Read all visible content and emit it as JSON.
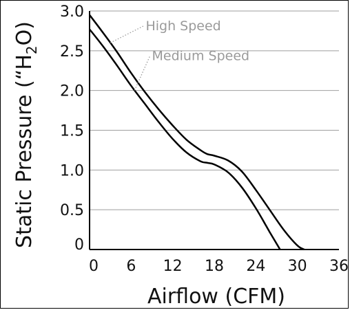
{
  "chart_data": {
    "type": "line",
    "title": "",
    "xlabel": "Airflow (CFM)",
    "ylabel_main": "Static Pressure (“H",
    "ylabel_sub": "2",
    "ylabel_end": "O)",
    "xlim": [
      0,
      36
    ],
    "ylim": [
      0,
      3.0
    ],
    "x_ticks": [
      "0",
      "6",
      "12",
      "18",
      "24",
      "30",
      "36"
    ],
    "y_ticks": [
      "0",
      "0.5",
      "1.0",
      "1.5",
      "2.0",
      "2.5",
      "3.0"
    ],
    "grid": "horizontal",
    "series": [
      {
        "name": "High Speed",
        "x": [
          0,
          2,
          4,
          6,
          8,
          10,
          12,
          14,
          16,
          17,
          18,
          20,
          22,
          24,
          26,
          28,
          30,
          31
        ],
        "y": [
          2.95,
          2.72,
          2.48,
          2.22,
          1.98,
          1.76,
          1.56,
          1.38,
          1.25,
          1.2,
          1.18,
          1.12,
          0.98,
          0.75,
          0.5,
          0.25,
          0.05,
          0.0
        ]
      },
      {
        "name": "Medium Speed",
        "x": [
          0,
          2,
          4,
          6,
          8,
          10,
          12,
          14,
          16,
          17,
          18,
          20,
          22,
          24,
          26,
          27.5
        ],
        "y": [
          2.77,
          2.55,
          2.31,
          2.06,
          1.83,
          1.6,
          1.39,
          1.22,
          1.11,
          1.09,
          1.07,
          0.97,
          0.78,
          0.52,
          0.22,
          0.0
        ]
      }
    ],
    "annotations": [
      {
        "text": "High Speed",
        "series": 0,
        "at_x": 3.0,
        "text_x": 8.1,
        "text_y": 2.76
      },
      {
        "text": "Medium Speed",
        "series": 1,
        "at_x": 6.5,
        "text_x": 9.0,
        "text_y": 2.38
      }
    ],
    "colors": {
      "line": "#000000",
      "grid": "#9e9e9e",
      "annotation": "#9a9a9a"
    }
  }
}
